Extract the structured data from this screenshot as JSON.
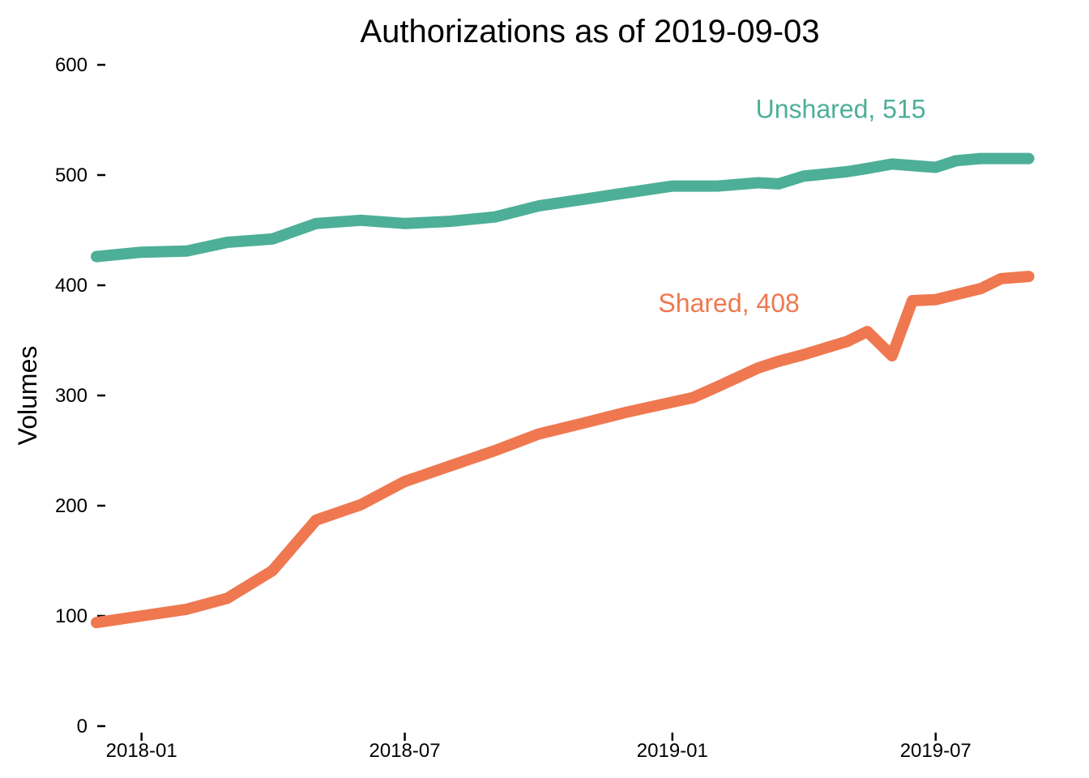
{
  "chart_data": {
    "type": "line",
    "title": "Authorizations as of  2019-09-03",
    "xlabel": "",
    "ylabel": "Volumes",
    "ylim": [
      0,
      600
    ],
    "xlim": [
      "2017-12-06",
      "2019-09-06"
    ],
    "grid": false,
    "legend": "none",
    "y_ticks": [
      0,
      100,
      200,
      300,
      400,
      500,
      600
    ],
    "x_ticks": [
      "2018-01",
      "2018-07",
      "2019-01",
      "2019-07"
    ],
    "series": [
      {
        "name": "Unshared",
        "color": "#4daf97",
        "label": "Unshared, 515",
        "x": [
          "2017-12-01",
          "2018-01-01",
          "2018-02-01",
          "2018-03-01",
          "2018-04-01",
          "2018-05-01",
          "2018-06-01",
          "2018-07-01",
          "2018-08-01",
          "2018-09-01",
          "2018-10-01",
          "2018-11-01",
          "2018-12-01",
          "2019-01-01",
          "2019-02-01",
          "2019-03-01",
          "2019-03-15",
          "2019-04-01",
          "2019-05-01",
          "2019-05-15",
          "2019-06-01",
          "2019-07-01",
          "2019-07-15",
          "2019-08-01",
          "2019-08-15",
          "2019-09-03"
        ],
        "values": [
          426,
          430,
          431,
          439,
          442,
          456,
          459,
          456,
          458,
          462,
          472,
          478,
          484,
          490,
          490,
          493,
          492,
          499,
          503,
          506,
          510,
          507,
          513,
          515,
          515,
          515
        ]
      },
      {
        "name": "Shared",
        "color": "#ef7850",
        "label": "Shared, 408",
        "x": [
          "2017-12-01",
          "2018-01-01",
          "2018-02-01",
          "2018-03-01",
          "2018-04-01",
          "2018-05-01",
          "2018-06-01",
          "2018-07-01",
          "2018-08-01",
          "2018-09-01",
          "2018-10-01",
          "2018-11-01",
          "2018-12-01",
          "2019-01-01",
          "2019-01-15",
          "2019-02-01",
          "2019-03-01",
          "2019-03-15",
          "2019-04-01",
          "2019-05-01",
          "2019-05-15",
          "2019-06-01",
          "2019-06-15",
          "2019-07-01",
          "2019-08-01",
          "2019-08-15",
          "2019-09-03"
        ],
        "values": [
          94,
          100,
          106,
          116,
          141,
          187,
          201,
          222,
          236,
          250,
          265,
          275,
          285,
          294,
          298,
          308,
          325,
          331,
          337,
          349,
          358,
          336,
          386,
          387,
          397,
          406,
          408
        ]
      }
    ]
  }
}
